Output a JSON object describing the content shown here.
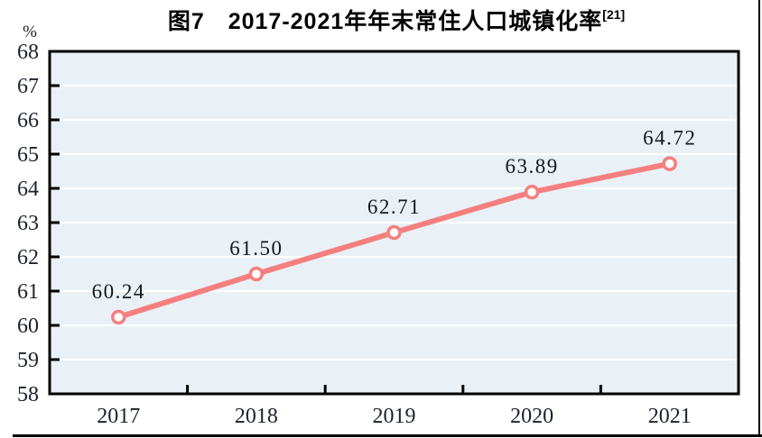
{
  "title": {
    "text": "图7　2017-2021年年末常住人口城镇化率",
    "superscript": "[21]"
  },
  "chart_data": {
    "type": "line",
    "title": "图7 2017-2021年年末常住人口城镇化率[21]",
    "unit_label": "%",
    "categories": [
      "2017",
      "2018",
      "2019",
      "2020",
      "2021"
    ],
    "values": [
      60.24,
      61.5,
      62.71,
      63.89,
      64.72
    ],
    "point_labels": [
      "60.24",
      "61.50",
      "62.71",
      "63.89",
      "64.72"
    ],
    "xlabel": "",
    "ylabel": "%",
    "ylim": [
      58,
      68
    ],
    "ytick_step": 1,
    "grid": true,
    "legend": "none",
    "colors": {
      "line": "#F57F7F",
      "marker_fill": "#FFFFFF",
      "marker_stroke": "#F57F7F",
      "plot_background": "#E9F1F6",
      "gridline": "#FFFFFF",
      "axis": "#000000",
      "tick_label": "#1C212B",
      "point_label": "#14181F"
    }
  }
}
